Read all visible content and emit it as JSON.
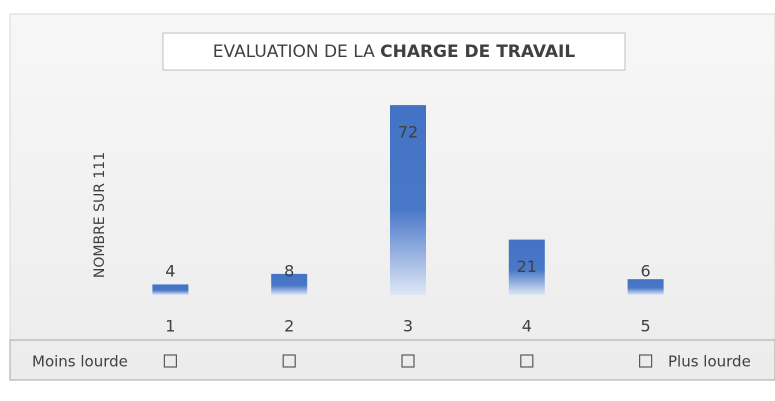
{
  "chart_data": {
    "type": "bar",
    "title_parts": [
      "EVALUATION DE LA",
      "CHARGE DE TRAVAIL"
    ],
    "ylabel": "NOMBRE SUR 111",
    "categories": [
      "1",
      "2",
      "3",
      "4",
      "5"
    ],
    "values": [
      4,
      8,
      72,
      21,
      6
    ],
    "color": "#4472c4",
    "ylim": [
      0,
      80
    ],
    "scale_labels": [
      "Moins lourde",
      "Plus lourde"
    ]
  }
}
